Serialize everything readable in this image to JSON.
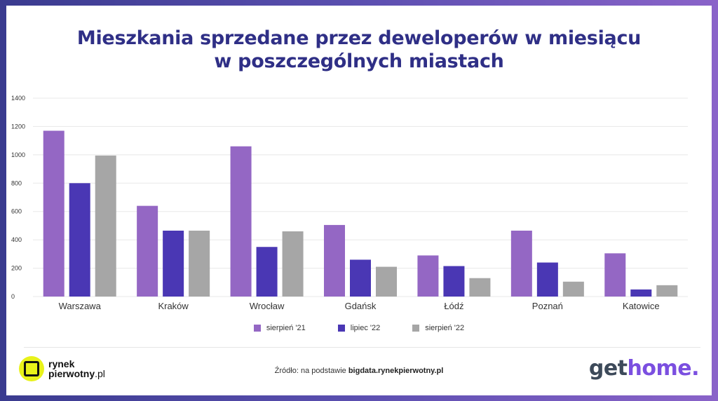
{
  "title_line1": "Mieszkania sprzedane przez deweloperów w miesiącu",
  "title_line2": "w poszczególnych miastach",
  "chart_data": {
    "type": "bar",
    "categories": [
      "Warszawa",
      "Kraków",
      "Wrocław",
      "Gdańsk",
      "Łódź",
      "Poznań",
      "Katowice"
    ],
    "series": [
      {
        "name": "sierpień '21",
        "color": "#9467c4",
        "values": [
          1170,
          640,
          1060,
          505,
          290,
          465,
          305
        ]
      },
      {
        "name": "lipiec '22",
        "color": "#4a37b4",
        "values": [
          800,
          465,
          350,
          260,
          215,
          240,
          50
        ]
      },
      {
        "name": "sierpień '22",
        "color": "#a6a6a6",
        "values": [
          995,
          465,
          460,
          210,
          130,
          105,
          80
        ]
      }
    ],
    "ylim": [
      0,
      1400
    ],
    "yticks": [
      0,
      200,
      400,
      600,
      800,
      1000,
      1200,
      1400
    ],
    "grid": true,
    "legend_position": "bottom"
  },
  "legend": {
    "s1": "sierpień '21",
    "s2": "lipiec '22",
    "s3": "sierpień '22"
  },
  "source": {
    "prefix": "Źródło: na podstawie ",
    "link": "bigdata.rynekpierwotny.pl"
  },
  "logo_left": {
    "line1": "rynek",
    "line2": "pierwotny",
    "suffix": ".pl"
  },
  "logo_right": {
    "part1": "get",
    "part2": "home."
  }
}
